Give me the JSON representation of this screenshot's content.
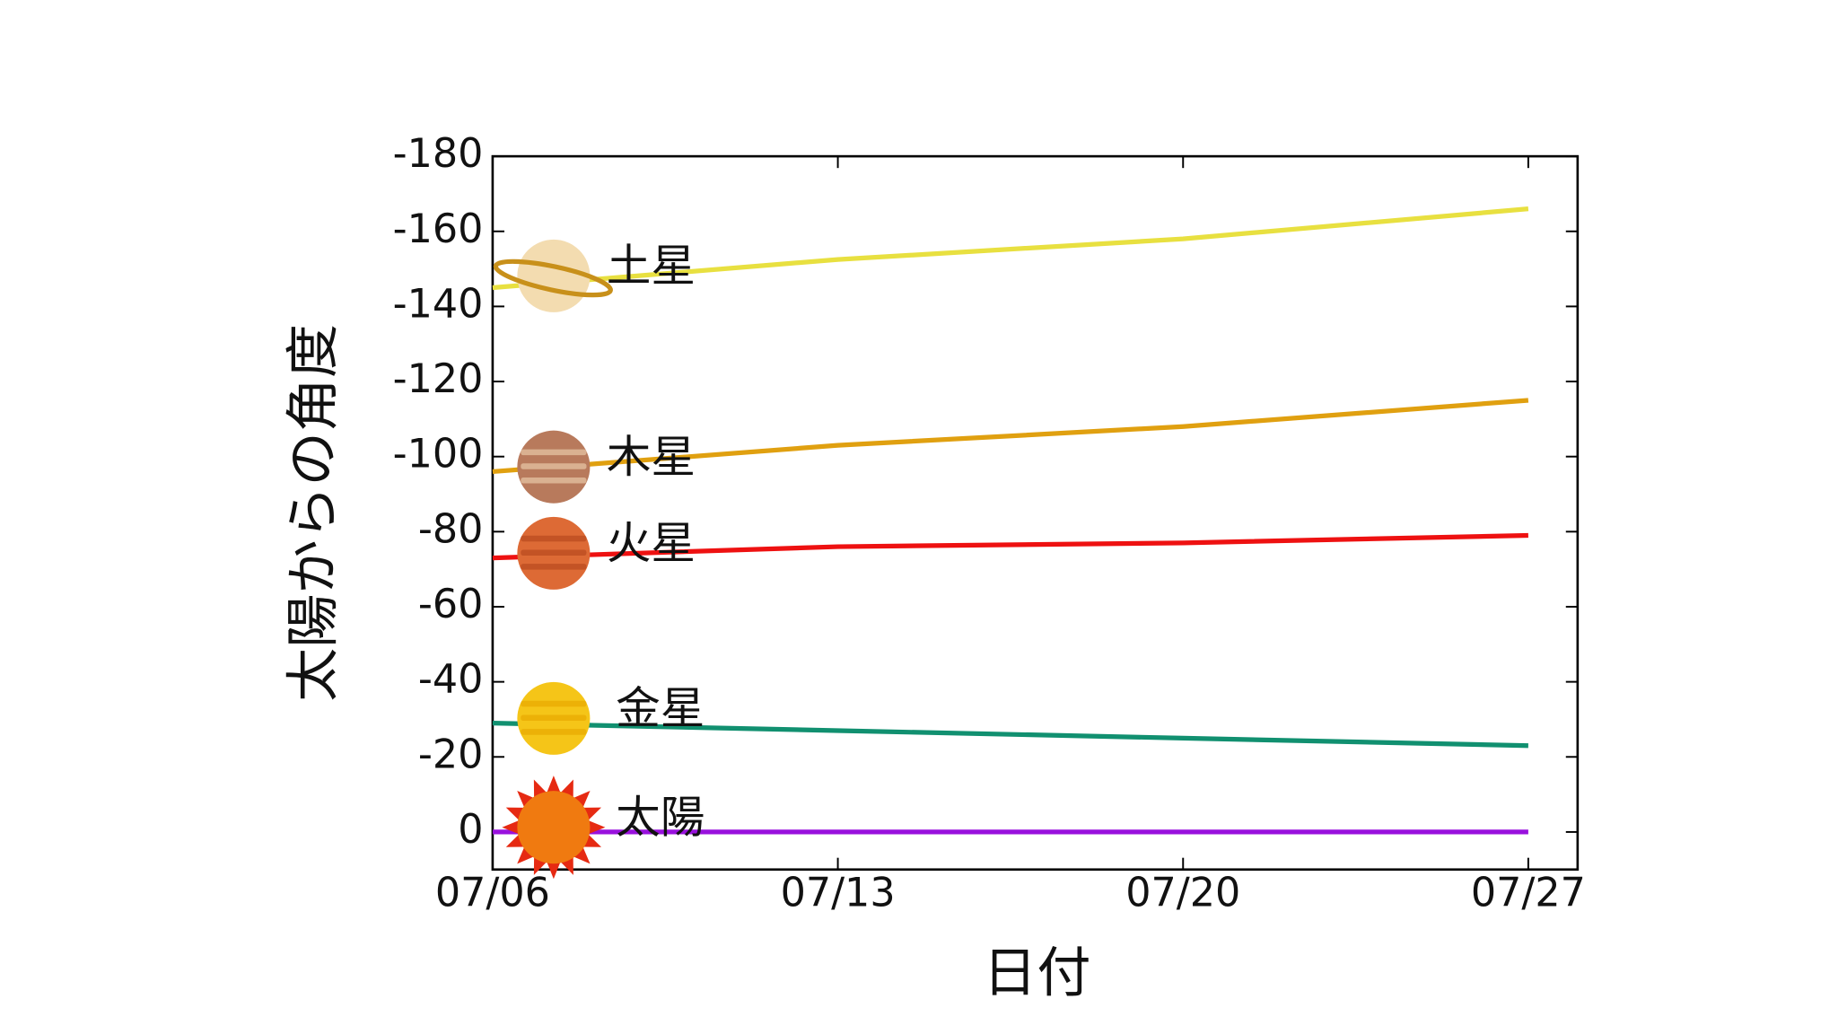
{
  "chart_data": {
    "type": "line",
    "x_label": "日付",
    "y_label": "太陽からの角度",
    "x": [
      "07/06",
      "07/13",
      "07/20",
      "07/27"
    ],
    "xlim": [
      "07/06",
      "07/28"
    ],
    "xticks": [
      "07/06",
      "07/13",
      "07/20",
      "07/27"
    ],
    "ylim": [
      10,
      -180
    ],
    "yticks": [
      0,
      -20,
      -40,
      -60,
      -80,
      -100,
      -120,
      -140,
      -160,
      -180
    ],
    "series": [
      {
        "name": "土星",
        "color": "#e8e040",
        "values": [
          -145,
          -152.5,
          -158,
          -166
        ]
      },
      {
        "name": "木星",
        "color": "#e0a010",
        "values": [
          -96,
          -103,
          -108,
          -115
        ]
      },
      {
        "name": "火星",
        "color": "#ee1111",
        "values": [
          -73,
          -76,
          -77,
          -79
        ]
      },
      {
        "name": "金星",
        "color": "#119070",
        "values": [
          -29,
          -27,
          -25,
          -23
        ]
      },
      {
        "name": "太陽",
        "color": "#9911dd",
        "values": [
          0,
          0,
          0,
          0
        ]
      }
    ]
  }
}
